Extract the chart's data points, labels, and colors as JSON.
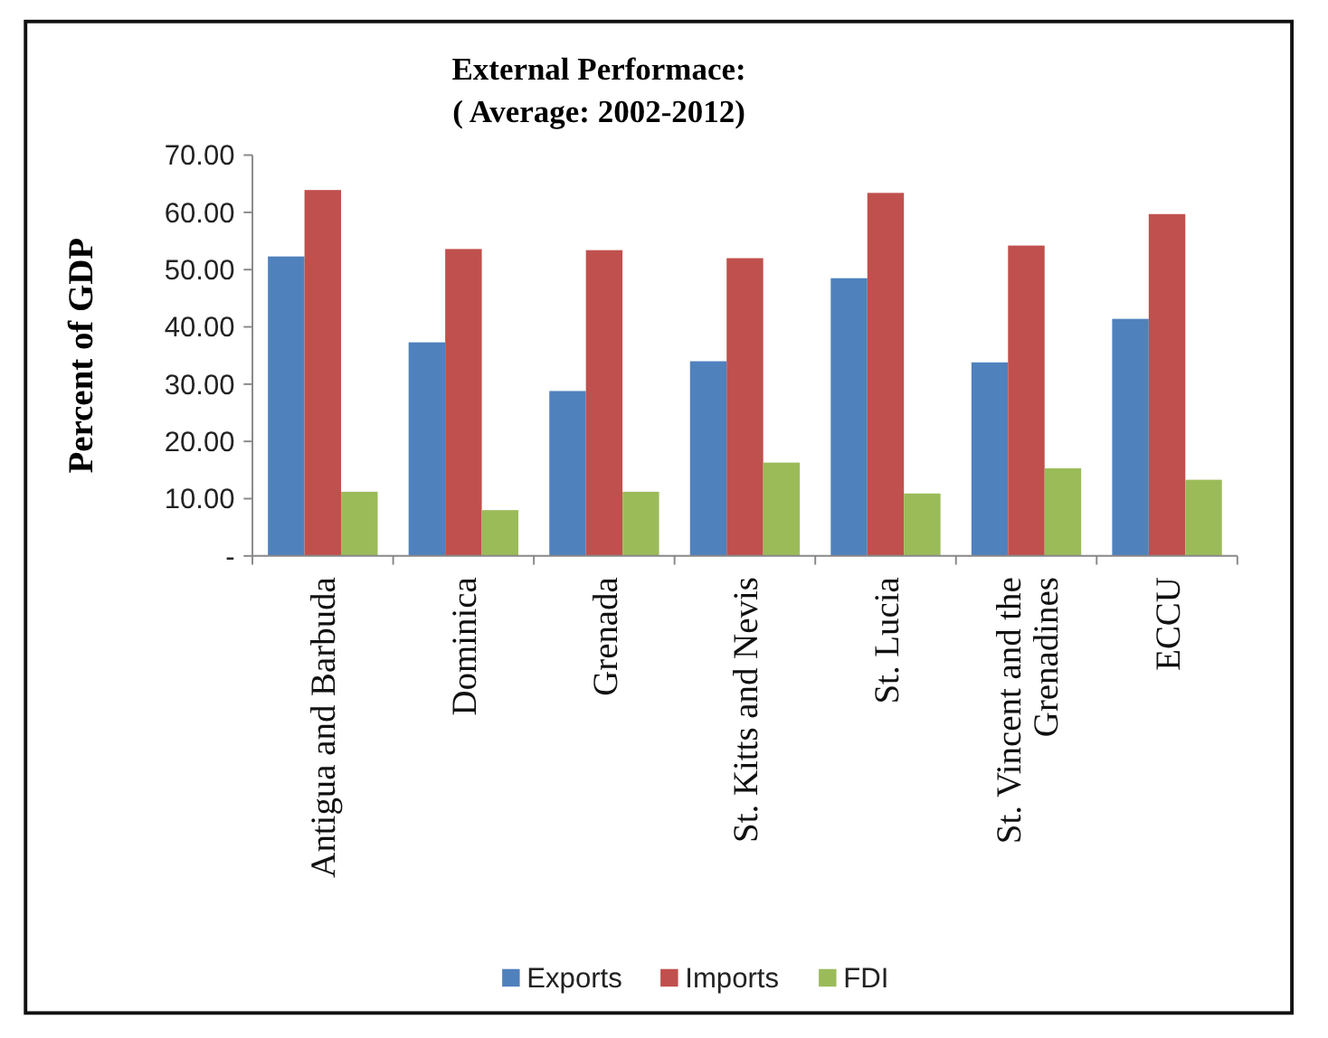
{
  "chart_data": {
    "type": "bar",
    "title": "External Performace:",
    "subtitle": "( Average: 2002-2012)",
    "ylabel": "Percent of GDP",
    "categories": [
      "Antigua and Barbuda",
      "Dominica",
      "Grenada",
      "St. Kitts and Nevis",
      "St. Lucia",
      "St. Vincent and the Grenadines",
      "ECCU"
    ],
    "series": [
      {
        "name": "Exports",
        "color": "#4f81bd",
        "values": [
          52.3,
          37.3,
          28.8,
          34.0,
          48.5,
          33.8,
          41.4
        ]
      },
      {
        "name": "Imports",
        "color": "#c0504d",
        "values": [
          63.9,
          53.6,
          53.4,
          52.0,
          63.4,
          54.2,
          59.7
        ]
      },
      {
        "name": "FDI",
        "color": "#9bbb59",
        "values": [
          11.2,
          8.0,
          11.2,
          16.3,
          10.9,
          15.3,
          13.3
        ]
      }
    ],
    "ylim": [
      0,
      70
    ],
    "yticks": [
      {
        "value": 0,
        "label": "-"
      },
      {
        "value": 10,
        "label": "10.00"
      },
      {
        "value": 20,
        "label": "20.00"
      },
      {
        "value": 30,
        "label": "30.00"
      },
      {
        "value": 40,
        "label": "40.00"
      },
      {
        "value": 50,
        "label": "50.00"
      },
      {
        "value": 60,
        "label": "60.00"
      },
      {
        "value": 70,
        "label": "70.00"
      }
    ],
    "grid": false,
    "legend": "bottom"
  }
}
